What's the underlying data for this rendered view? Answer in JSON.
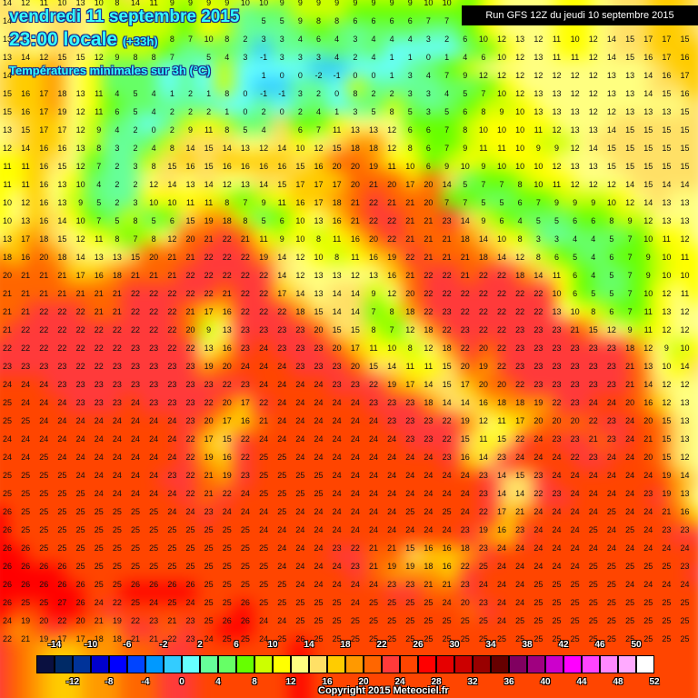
{
  "header": {
    "date": "vendredi 11 septembre 2015",
    "time": "23:00 locale",
    "offset": "(+33h)",
    "parameter": "Températures minimales sur 3h (°C)",
    "run": "Run GFS 12Z du jeudi 10 septembre 2015"
  },
  "footer": {
    "copyright": "Copyright 2015 Meteociel.fr"
  },
  "legend": {
    "colors": [
      "#0a1040",
      "#002a66",
      "#003399",
      "#0000cc",
      "#0000ff",
      "#0044ff",
      "#0099ff",
      "#33ccff",
      "#66ffff",
      "#66ff99",
      "#66ff66",
      "#66ff00",
      "#ccff00",
      "#ffff00",
      "#ffff80",
      "#ffe066",
      "#ffcc00",
      "#ff9900",
      "#ff6600",
      "#ff3a3a",
      "#ff4500",
      "#ff0000",
      "#e60000",
      "#cc0000",
      "#990000",
      "#660000",
      "#800060",
      "#a00080",
      "#cc00cc",
      "#ff00ff",
      "#ff44ff",
      "#ff88ff",
      "#ffaaff",
      "#ffffff"
    ],
    "top_labels": [
      "-14",
      "-10",
      "-6",
      "-2",
      "2",
      "6",
      "10",
      "14",
      "18",
      "22",
      "26",
      "30",
      "34",
      "38",
      "42",
      "46",
      "50"
    ],
    "bottom_labels": [
      "-12",
      "-8",
      "-4",
      "0",
      "4",
      "8",
      "12",
      "16",
      "20",
      "24",
      "28",
      "32",
      "36",
      "40",
      "44",
      "48",
      "52"
    ]
  },
  "grid": {
    "rows": [
      [
        14,
        12,
        11,
        10,
        13,
        10,
        8,
        14,
        11,
        9,
        9,
        9,
        9,
        10,
        10,
        9,
        9,
        9,
        9,
        9,
        9,
        9,
        9,
        10,
        10,
        null,
        null,
        null,
        null,
        null,
        null,
        null,
        null,
        null,
        null,
        null,
        null,
        null
      ],
      [
        14,
        null,
        null,
        null,
        null,
        null,
        null,
        null,
        null,
        null,
        null,
        null,
        null,
        null,
        5,
        5,
        9,
        8,
        8,
        6,
        6,
        6,
        6,
        7,
        7,
        6,
        null,
        null,
        null,
        null,
        null,
        null,
        null,
        null,
        null,
        null,
        null,
        null
      ],
      [
        13,
        null,
        null,
        null,
        null,
        null,
        null,
        null,
        null,
        8,
        7,
        10,
        8,
        2,
        3,
        3,
        4,
        6,
        4,
        3,
        4,
        4,
        4,
        3,
        2,
        6,
        10,
        12,
        13,
        12,
        11,
        10,
        12,
        14,
        15,
        17,
        17,
        15
      ],
      [
        13,
        14,
        12,
        15,
        15,
        12,
        9,
        8,
        8,
        7,
        null,
        5,
        4,
        3,
        -1,
        3,
        3,
        3,
        4,
        2,
        4,
        1,
        1,
        0,
        1,
        4,
        6,
        10,
        12,
        13,
        11,
        11,
        12,
        14,
        15,
        16,
        17,
        16
      ],
      [
        14,
        null,
        null,
        null,
        null,
        null,
        null,
        null,
        null,
        null,
        null,
        null,
        null,
        null,
        1,
        0,
        0,
        -2,
        -1,
        0,
        0,
        1,
        3,
        4,
        7,
        9,
        12,
        12,
        12,
        12,
        12,
        12,
        12,
        13,
        13,
        14,
        16,
        17
      ],
      [
        15,
        16,
        17,
        18,
        13,
        11,
        4,
        5,
        4,
        1,
        2,
        1,
        8,
        0,
        -1,
        -1,
        3,
        2,
        0,
        8,
        2,
        2,
        3,
        3,
        4,
        5,
        7,
        10,
        12,
        13,
        13,
        12,
        12,
        13,
        13,
        14,
        15,
        16
      ],
      [
        15,
        16,
        17,
        19,
        12,
        11,
        6,
        5,
        4,
        2,
        2,
        2,
        1,
        0,
        2,
        0,
        2,
        4,
        1,
        3,
        5,
        8,
        5,
        3,
        5,
        6,
        8,
        9,
        10,
        13,
        13,
        13,
        12,
        12,
        13,
        13,
        13,
        15
      ],
      [
        13,
        15,
        17,
        17,
        12,
        9,
        4,
        2,
        0,
        2,
        9,
        11,
        8,
        5,
        4,
        null,
        6,
        7,
        11,
        13,
        13,
        12,
        6,
        6,
        7,
        8,
        10,
        10,
        10,
        11,
        12,
        13,
        13,
        14,
        15,
        15,
        15,
        15
      ],
      [
        12,
        14,
        16,
        16,
        13,
        8,
        3,
        2,
        4,
        8,
        14,
        15,
        14,
        13,
        12,
        14,
        10,
        12,
        15,
        18,
        18,
        12,
        8,
        6,
        7,
        9,
        11,
        11,
        10,
        9,
        9,
        12,
        14,
        15,
        15,
        15,
        15,
        15
      ],
      [
        11,
        11,
        16,
        15,
        12,
        7,
        2,
        3,
        8,
        15,
        16,
        15,
        16,
        16,
        16,
        16,
        15,
        16,
        20,
        20,
        19,
        11,
        10,
        6,
        9,
        10,
        9,
        10,
        10,
        10,
        12,
        13,
        13,
        15,
        15,
        15,
        15,
        15
      ],
      [
        11,
        11,
        16,
        13,
        10,
        4,
        2,
        2,
        12,
        14,
        13,
        14,
        12,
        13,
        14,
        15,
        17,
        17,
        17,
        20,
        21,
        20,
        17,
        20,
        14,
        5,
        7,
        7,
        8,
        10,
        11,
        12,
        12,
        12,
        14,
        15,
        14,
        14
      ],
      [
        10,
        12,
        16,
        13,
        9,
        5,
        2,
        3,
        10,
        10,
        11,
        11,
        8,
        7,
        9,
        11,
        16,
        17,
        18,
        21,
        22,
        21,
        21,
        20,
        7,
        7,
        5,
        5,
        6,
        7,
        9,
        9,
        9,
        10,
        12,
        14,
        13,
        13
      ],
      [
        10,
        13,
        16,
        14,
        10,
        7,
        5,
        8,
        5,
        6,
        15,
        19,
        18,
        8,
        5,
        6,
        10,
        13,
        16,
        21,
        22,
        22,
        21,
        21,
        23,
        14,
        9,
        6,
        4,
        5,
        5,
        6,
        6,
        8,
        9,
        12,
        13,
        13
      ],
      [
        13,
        17,
        18,
        15,
        12,
        11,
        8,
        7,
        8,
        12,
        20,
        21,
        22,
        21,
        11,
        9,
        10,
        8,
        11,
        16,
        20,
        22,
        21,
        21,
        21,
        18,
        14,
        10,
        8,
        3,
        3,
        4,
        4,
        5,
        7,
        10,
        11,
        12
      ],
      [
        18,
        16,
        20,
        18,
        14,
        13,
        13,
        15,
        20,
        21,
        21,
        22,
        22,
        22,
        19,
        14,
        12,
        10,
        8,
        11,
        16,
        19,
        22,
        21,
        21,
        21,
        18,
        14,
        12,
        8,
        6,
        5,
        4,
        6,
        7,
        9,
        10,
        11
      ],
      [
        20,
        21,
        21,
        21,
        17,
        16,
        18,
        21,
        21,
        21,
        22,
        22,
        22,
        22,
        22,
        14,
        12,
        13,
        13,
        12,
        13,
        16,
        21,
        22,
        22,
        21,
        22,
        22,
        18,
        14,
        11,
        6,
        4,
        5,
        7,
        9,
        10,
        10
      ],
      [
        21,
        21,
        21,
        21,
        21,
        21,
        21,
        22,
        22,
        22,
        22,
        22,
        21,
        22,
        22,
        17,
        14,
        13,
        14,
        14,
        9,
        12,
        20,
        22,
        22,
        22,
        22,
        22,
        22,
        22,
        10,
        6,
        5,
        5,
        7,
        10,
        12,
        11
      ],
      [
        21,
        21,
        22,
        22,
        22,
        21,
        21,
        22,
        22,
        22,
        21,
        17,
        16,
        22,
        22,
        22,
        18,
        15,
        14,
        14,
        7,
        8,
        18,
        22,
        23,
        22,
        22,
        22,
        22,
        22,
        13,
        10,
        8,
        6,
        7,
        11,
        13,
        12
      ],
      [
        21,
        22,
        22,
        22,
        22,
        22,
        22,
        22,
        22,
        22,
        20,
        9,
        13,
        23,
        23,
        23,
        23,
        20,
        15,
        15,
        8,
        7,
        12,
        18,
        22,
        23,
        22,
        22,
        23,
        23,
        23,
        21,
        15,
        12,
        9,
        11,
        12,
        12
      ],
      [
        22,
        22,
        22,
        22,
        22,
        22,
        22,
        23,
        23,
        22,
        22,
        13,
        16,
        23,
        24,
        23,
        23,
        23,
        20,
        17,
        11,
        10,
        8,
        12,
        18,
        22,
        20,
        22,
        23,
        23,
        23,
        23,
        23,
        23,
        18,
        12,
        9,
        10
      ],
      [
        23,
        23,
        23,
        23,
        22,
        22,
        23,
        23,
        23,
        23,
        23,
        19,
        20,
        24,
        24,
        24,
        23,
        23,
        23,
        20,
        15,
        14,
        11,
        11,
        15,
        20,
        19,
        22,
        23,
        23,
        23,
        23,
        23,
        23,
        21,
        13,
        10,
        14
      ],
      [
        24,
        24,
        24,
        23,
        23,
        23,
        23,
        23,
        23,
        23,
        23,
        23,
        22,
        23,
        24,
        24,
        24,
        24,
        23,
        23,
        22,
        19,
        17,
        14,
        15,
        17,
        20,
        20,
        22,
        23,
        23,
        23,
        23,
        23,
        21,
        14,
        12,
        12
      ],
      [
        25,
        24,
        24,
        24,
        23,
        23,
        23,
        24,
        23,
        23,
        23,
        22,
        20,
        17,
        22,
        24,
        24,
        24,
        24,
        24,
        23,
        23,
        23,
        18,
        14,
        14,
        16,
        18,
        18,
        19,
        22,
        23,
        24,
        24,
        20,
        16,
        12,
        13
      ],
      [
        25,
        25,
        24,
        24,
        24,
        24,
        24,
        24,
        24,
        24,
        23,
        20,
        17,
        16,
        21,
        24,
        24,
        24,
        24,
        24,
        24,
        23,
        23,
        23,
        22,
        19,
        12,
        11,
        17,
        20,
        20,
        20,
        22,
        23,
        24,
        20,
        15,
        13
      ],
      [
        24,
        24,
        24,
        24,
        24,
        24,
        24,
        24,
        24,
        24,
        22,
        17,
        15,
        22,
        24,
        24,
        24,
        24,
        24,
        24,
        24,
        24,
        23,
        23,
        22,
        15,
        11,
        15,
        22,
        24,
        23,
        23,
        21,
        23,
        24,
        21,
        15,
        13
      ],
      [
        24,
        24,
        25,
        24,
        24,
        24,
        24,
        24,
        24,
        24,
        22,
        19,
        16,
        22,
        25,
        25,
        24,
        24,
        24,
        24,
        24,
        24,
        24,
        24,
        23,
        16,
        14,
        23,
        24,
        24,
        24,
        22,
        23,
        24,
        24,
        20,
        15,
        12
      ],
      [
        25,
        25,
        25,
        25,
        24,
        24,
        24,
        24,
        24,
        23,
        22,
        21,
        19,
        23,
        25,
        25,
        25,
        25,
        24,
        24,
        24,
        24,
        24,
        24,
        24,
        24,
        23,
        14,
        15,
        23,
        24,
        24,
        24,
        24,
        24,
        24,
        19,
        14
      ],
      [
        25,
        25,
        25,
        25,
        25,
        24,
        24,
        24,
        24,
        24,
        22,
        21,
        22,
        24,
        25,
        25,
        25,
        25,
        24,
        24,
        24,
        24,
        24,
        24,
        24,
        24,
        23,
        14,
        14,
        22,
        23,
        24,
        24,
        24,
        24,
        23,
        19,
        13
      ],
      [
        26,
        25,
        25,
        25,
        25,
        25,
        25,
        25,
        25,
        24,
        24,
        23,
        24,
        24,
        24,
        25,
        24,
        24,
        24,
        24,
        24,
        24,
        25,
        24,
        25,
        24,
        22,
        17,
        21,
        24,
        24,
        24,
        24,
        25,
        24,
        24,
        21,
        16
      ],
      [
        26,
        25,
        25,
        25,
        25,
        25,
        25,
        25,
        25,
        25,
        25,
        25,
        25,
        25,
        24,
        24,
        24,
        24,
        24,
        24,
        24,
        24,
        24,
        24,
        24,
        23,
        19,
        16,
        23,
        24,
        24,
        24,
        25,
        24,
        25,
        24,
        23,
        23
      ],
      [
        26,
        26,
        25,
        25,
        25,
        25,
        25,
        25,
        25,
        25,
        25,
        25,
        25,
        25,
        25,
        24,
        24,
        24,
        23,
        22,
        21,
        21,
        15,
        16,
        16,
        18,
        23,
        24,
        24,
        24,
        24,
        24,
        24,
        24,
        24,
        24,
        24,
        24
      ],
      [
        26,
        26,
        26,
        26,
        25,
        25,
        25,
        25,
        25,
        25,
        25,
        25,
        25,
        25,
        25,
        24,
        24,
        24,
        24,
        23,
        21,
        19,
        19,
        18,
        16,
        22,
        25,
        24,
        24,
        24,
        24,
        24,
        25,
        25,
        25,
        25,
        25,
        23
      ],
      [
        26,
        26,
        26,
        26,
        26,
        25,
        25,
        26,
        26,
        26,
        26,
        25,
        25,
        25,
        25,
        25,
        24,
        24,
        24,
        24,
        24,
        23,
        23,
        21,
        21,
        23,
        24,
        24,
        24,
        25,
        25,
        25,
        25,
        25,
        24,
        24,
        24,
        24
      ],
      [
        26,
        25,
        25,
        27,
        26,
        24,
        22,
        25,
        24,
        25,
        24,
        25,
        25,
        26,
        25,
        25,
        25,
        25,
        25,
        24,
        25,
        25,
        25,
        25,
        24,
        20,
        23,
        24,
        24,
        25,
        25,
        25,
        25,
        25,
        25,
        25,
        25,
        25
      ],
      [
        24,
        19,
        20,
        22,
        20,
        21,
        19,
        22,
        23,
        21,
        23,
        25,
        26,
        26,
        24,
        24,
        25,
        25,
        25,
        25,
        25,
        25,
        25,
        25,
        25,
        25,
        25,
        24,
        25,
        25,
        25,
        25,
        25,
        25,
        25,
        25,
        25,
        25
      ],
      [
        22,
        21,
        19,
        17,
        17,
        18,
        18,
        21,
        21,
        22,
        23,
        24,
        25,
        25,
        24,
        25,
        26,
        25,
        25,
        25,
        25,
        25,
        25,
        25,
        25,
        25,
        25,
        25,
        25,
        25,
        25,
        25,
        25,
        25,
        25,
        25,
        25,
        25
      ]
    ]
  }
}
